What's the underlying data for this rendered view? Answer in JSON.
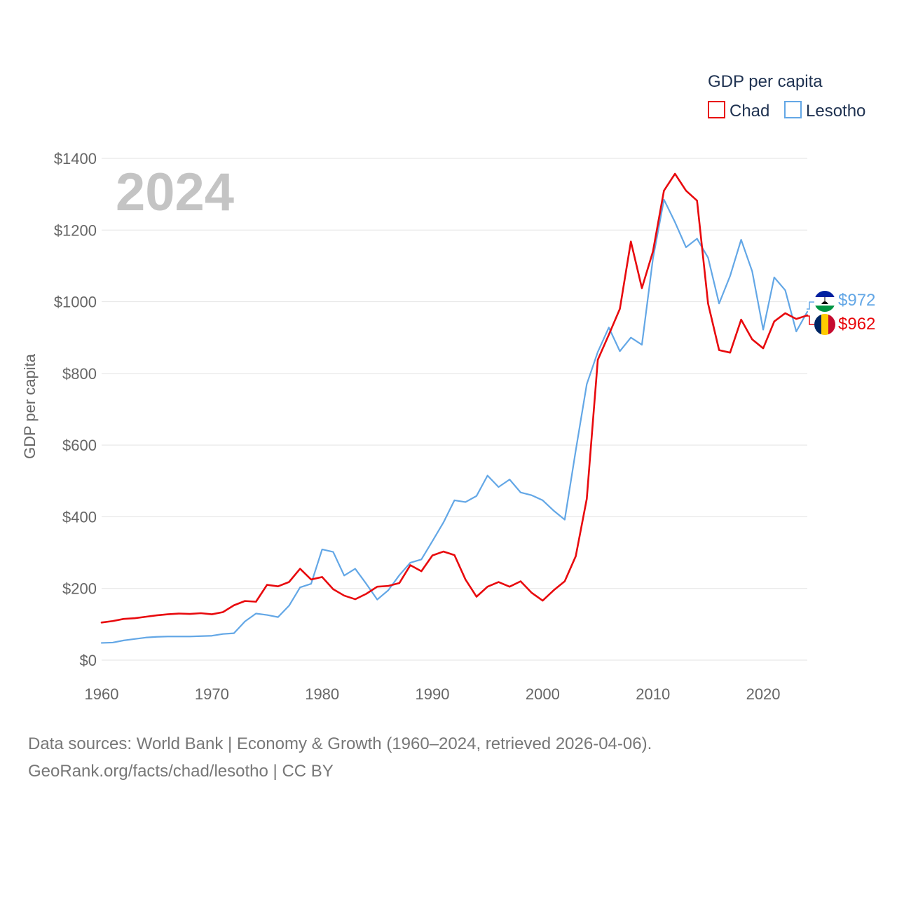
{
  "chart_data": {
    "type": "line",
    "title": "2024",
    "ylabel": "GDP per capita",
    "xlabel": "",
    "xlim": [
      1960,
      2024
    ],
    "ylim": [
      0,
      1400
    ],
    "x_ticks": [
      1960,
      1970,
      1980,
      1990,
      2000,
      2010,
      2020
    ],
    "y_ticks": [
      0,
      200,
      400,
      600,
      800,
      1000,
      1200,
      1400
    ],
    "y_tick_labels": [
      "$0",
      "$200",
      "$400",
      "$600",
      "$800",
      "$1000",
      "$1200",
      "$1400"
    ],
    "x_tick_labels": [
      "1960",
      "1970",
      "1980",
      "1990",
      "2000",
      "2010",
      "2020"
    ],
    "grid": true,
    "legend": {
      "title": "GDP per capita",
      "position": "top-right",
      "entries": [
        "Chad",
        "Lesotho"
      ]
    },
    "x": [
      1960,
      1961,
      1962,
      1963,
      1964,
      1965,
      1966,
      1967,
      1968,
      1969,
      1970,
      1971,
      1972,
      1973,
      1974,
      1975,
      1976,
      1977,
      1978,
      1979,
      1980,
      1981,
      1982,
      1983,
      1984,
      1985,
      1986,
      1987,
      1988,
      1989,
      1990,
      1991,
      1992,
      1993,
      1994,
      1995,
      1996,
      1997,
      1998,
      1999,
      2000,
      2001,
      2002,
      2003,
      2004,
      2005,
      2006,
      2007,
      2008,
      2009,
      2010,
      2011,
      2012,
      2013,
      2014,
      2015,
      2016,
      2017,
      2018,
      2019,
      2020,
      2021,
      2022,
      2023,
      2024
    ],
    "series": [
      {
        "name": "Chad",
        "color": "#e8090d",
        "end_label": "$962",
        "values": [
          105,
          109,
          115,
          117,
          121,
          125,
          128,
          130,
          129,
          131,
          128,
          134,
          153,
          165,
          163,
          210,
          206,
          218,
          255,
          225,
          232,
          198,
          180,
          170,
          185,
          205,
          207,
          215,
          265,
          248,
          292,
          303,
          293,
          225,
          177,
          205,
          218,
          205,
          220,
          188,
          166,
          195,
          220,
          290,
          450,
          838,
          908,
          980,
          1168,
          1038,
          1140,
          1310,
          1357,
          1310,
          1282,
          995,
          865,
          858,
          950,
          895,
          870,
          945,
          968,
          952,
          962
        ]
      },
      {
        "name": "Lesotho",
        "color": "#63a7e6",
        "end_label": "$972",
        "values": [
          48,
          49,
          55,
          59,
          63,
          65,
          66,
          66,
          66,
          67,
          68,
          73,
          75,
          108,
          130,
          126,
          120,
          152,
          203,
          213,
          309,
          302,
          236,
          255,
          213,
          169,
          195,
          237,
          272,
          281,
          332,
          384,
          446,
          441,
          458,
          515,
          483,
          504,
          468,
          460,
          446,
          417,
          392,
          585,
          770,
          860,
          928,
          862,
          900,
          880,
          1120,
          1285,
          1222,
          1152,
          1176,
          1123,
          995,
          1072,
          1173,
          1085,
          922,
          1068,
          1032,
          917,
          972
        ]
      }
    ]
  },
  "footer": {
    "source_line1": "Data sources: World Bank | Economy & Growth (1960–2024, retrieved 2026-04-06).",
    "source_line2": "GeoRank.org/facts/chad/lesotho | CC BY"
  },
  "flags": {
    "chad": [
      "#002664",
      "#fecb00",
      "#c60c30"
    ],
    "lesotho": [
      "#00209f",
      "#ffffff",
      "#009543"
    ],
    "lesotho_emblem": "#000000"
  }
}
